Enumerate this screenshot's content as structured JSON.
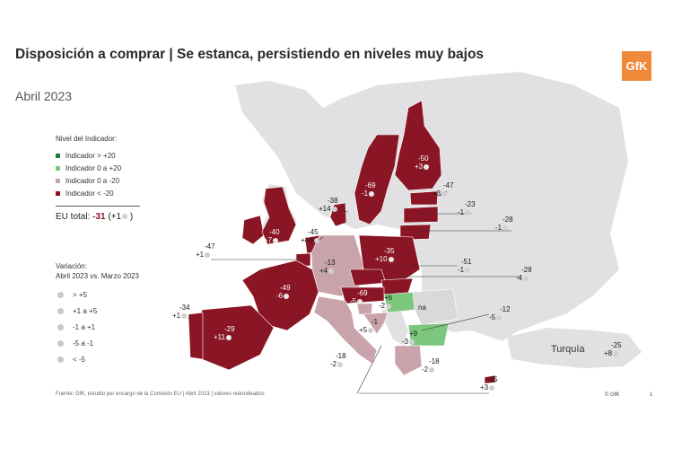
{
  "header": {
    "title": "Disposición a comprar | Se estanca, persistiendo en niveles muy bajos",
    "subtitle": "Abril 2023",
    "logo": "GfK"
  },
  "colors": {
    "strong_positive": "#1e7a37",
    "mild_positive": "#7dc67e",
    "mild_negative": "#c9a3aa",
    "strong_negative": "#8a1524",
    "no_data": "#d9d9d9"
  },
  "legend": {
    "title": "Nivel del Indicador:",
    "items": [
      {
        "label": "Indicador > +20",
        "color": "#1e7a37"
      },
      {
        "label": "Indicador 0 a +20",
        "color": "#7dc67e"
      },
      {
        "label": "Indicador 0 a -20",
        "color": "#c9a3aa"
      },
      {
        "label": "Indicador < -20",
        "color": "#8a1524"
      }
    ],
    "eu_total_label": "EU total:",
    "eu_total_value": "-31",
    "eu_total_change": "(+1",
    "eu_total_close": ")"
  },
  "variation": {
    "title": "Variación:",
    "subtitle": "Abril 2023 vs. Marzo 2023",
    "items": [
      {
        "label": "> +5",
        "icon": "arrow-up-icon"
      },
      {
        "label": "+1 a +5",
        "icon": "arrow-up-right-icon"
      },
      {
        "label": "-1 a +1",
        "icon": "arrow-right-icon"
      },
      {
        "label": "-5 a -1",
        "icon": "arrow-down-right-icon"
      },
      {
        "label": "< -5",
        "icon": "arrow-down-icon"
      }
    ]
  },
  "countries": {
    "finland": {
      "value": "-50",
      "change": "+3"
    },
    "sweden": {
      "value": "-69",
      "change": "-1"
    },
    "denmark": {
      "value": "-38",
      "change": "+14"
    },
    "estonia": {
      "value": "-47",
      "change": "+3"
    },
    "latvia": {
      "value": "-23",
      "change": "-1"
    },
    "lithuania": {
      "value": "-28",
      "change": "-1"
    },
    "ireland": {
      "value": "-40",
      "change": "+7"
    },
    "netherlands": {
      "value": "-45",
      "change": "+/-0"
    },
    "belgium": {
      "value": "-47",
      "change": "+1"
    },
    "germany": {
      "value": "-13",
      "change": "+4"
    },
    "poland": {
      "value": "-35",
      "change": "+10"
    },
    "czechia": {
      "value": "-51",
      "change": "-1"
    },
    "slovakia": {
      "value": "-28",
      "change": "-4"
    },
    "france": {
      "value": "-49",
      "change": "-6"
    },
    "austria": {
      "value": "-69",
      "change": "-5"
    },
    "hungary": {
      "value": "+6",
      "change": "-2"
    },
    "romania": {
      "value": "na"
    },
    "bulgaria": {
      "value": "+9",
      "change": "-3"
    },
    "slovenia": {
      "value": "-1",
      "change": "+5"
    },
    "croatia": {
      "value": "-12",
      "change": "-5"
    },
    "portugal": {
      "value": "-34",
      "change": "+1"
    },
    "spain": {
      "value": "-29",
      "change": "+11"
    },
    "italy": {
      "value": "-18",
      "change": "-2"
    },
    "greece": {
      "value": "-18",
      "change": "-2"
    },
    "cyprus": {
      "value": "-25",
      "change": "+3"
    },
    "turkey": {
      "name": "Turquía",
      "value": "-25",
      "change": "+8"
    }
  },
  "footer": {
    "source": "Fuente: GfK, estudio por encargo de la Comisión  EU  | Abril 2023 | valores redondeados",
    "copyright": "© GfK",
    "page": "1"
  }
}
